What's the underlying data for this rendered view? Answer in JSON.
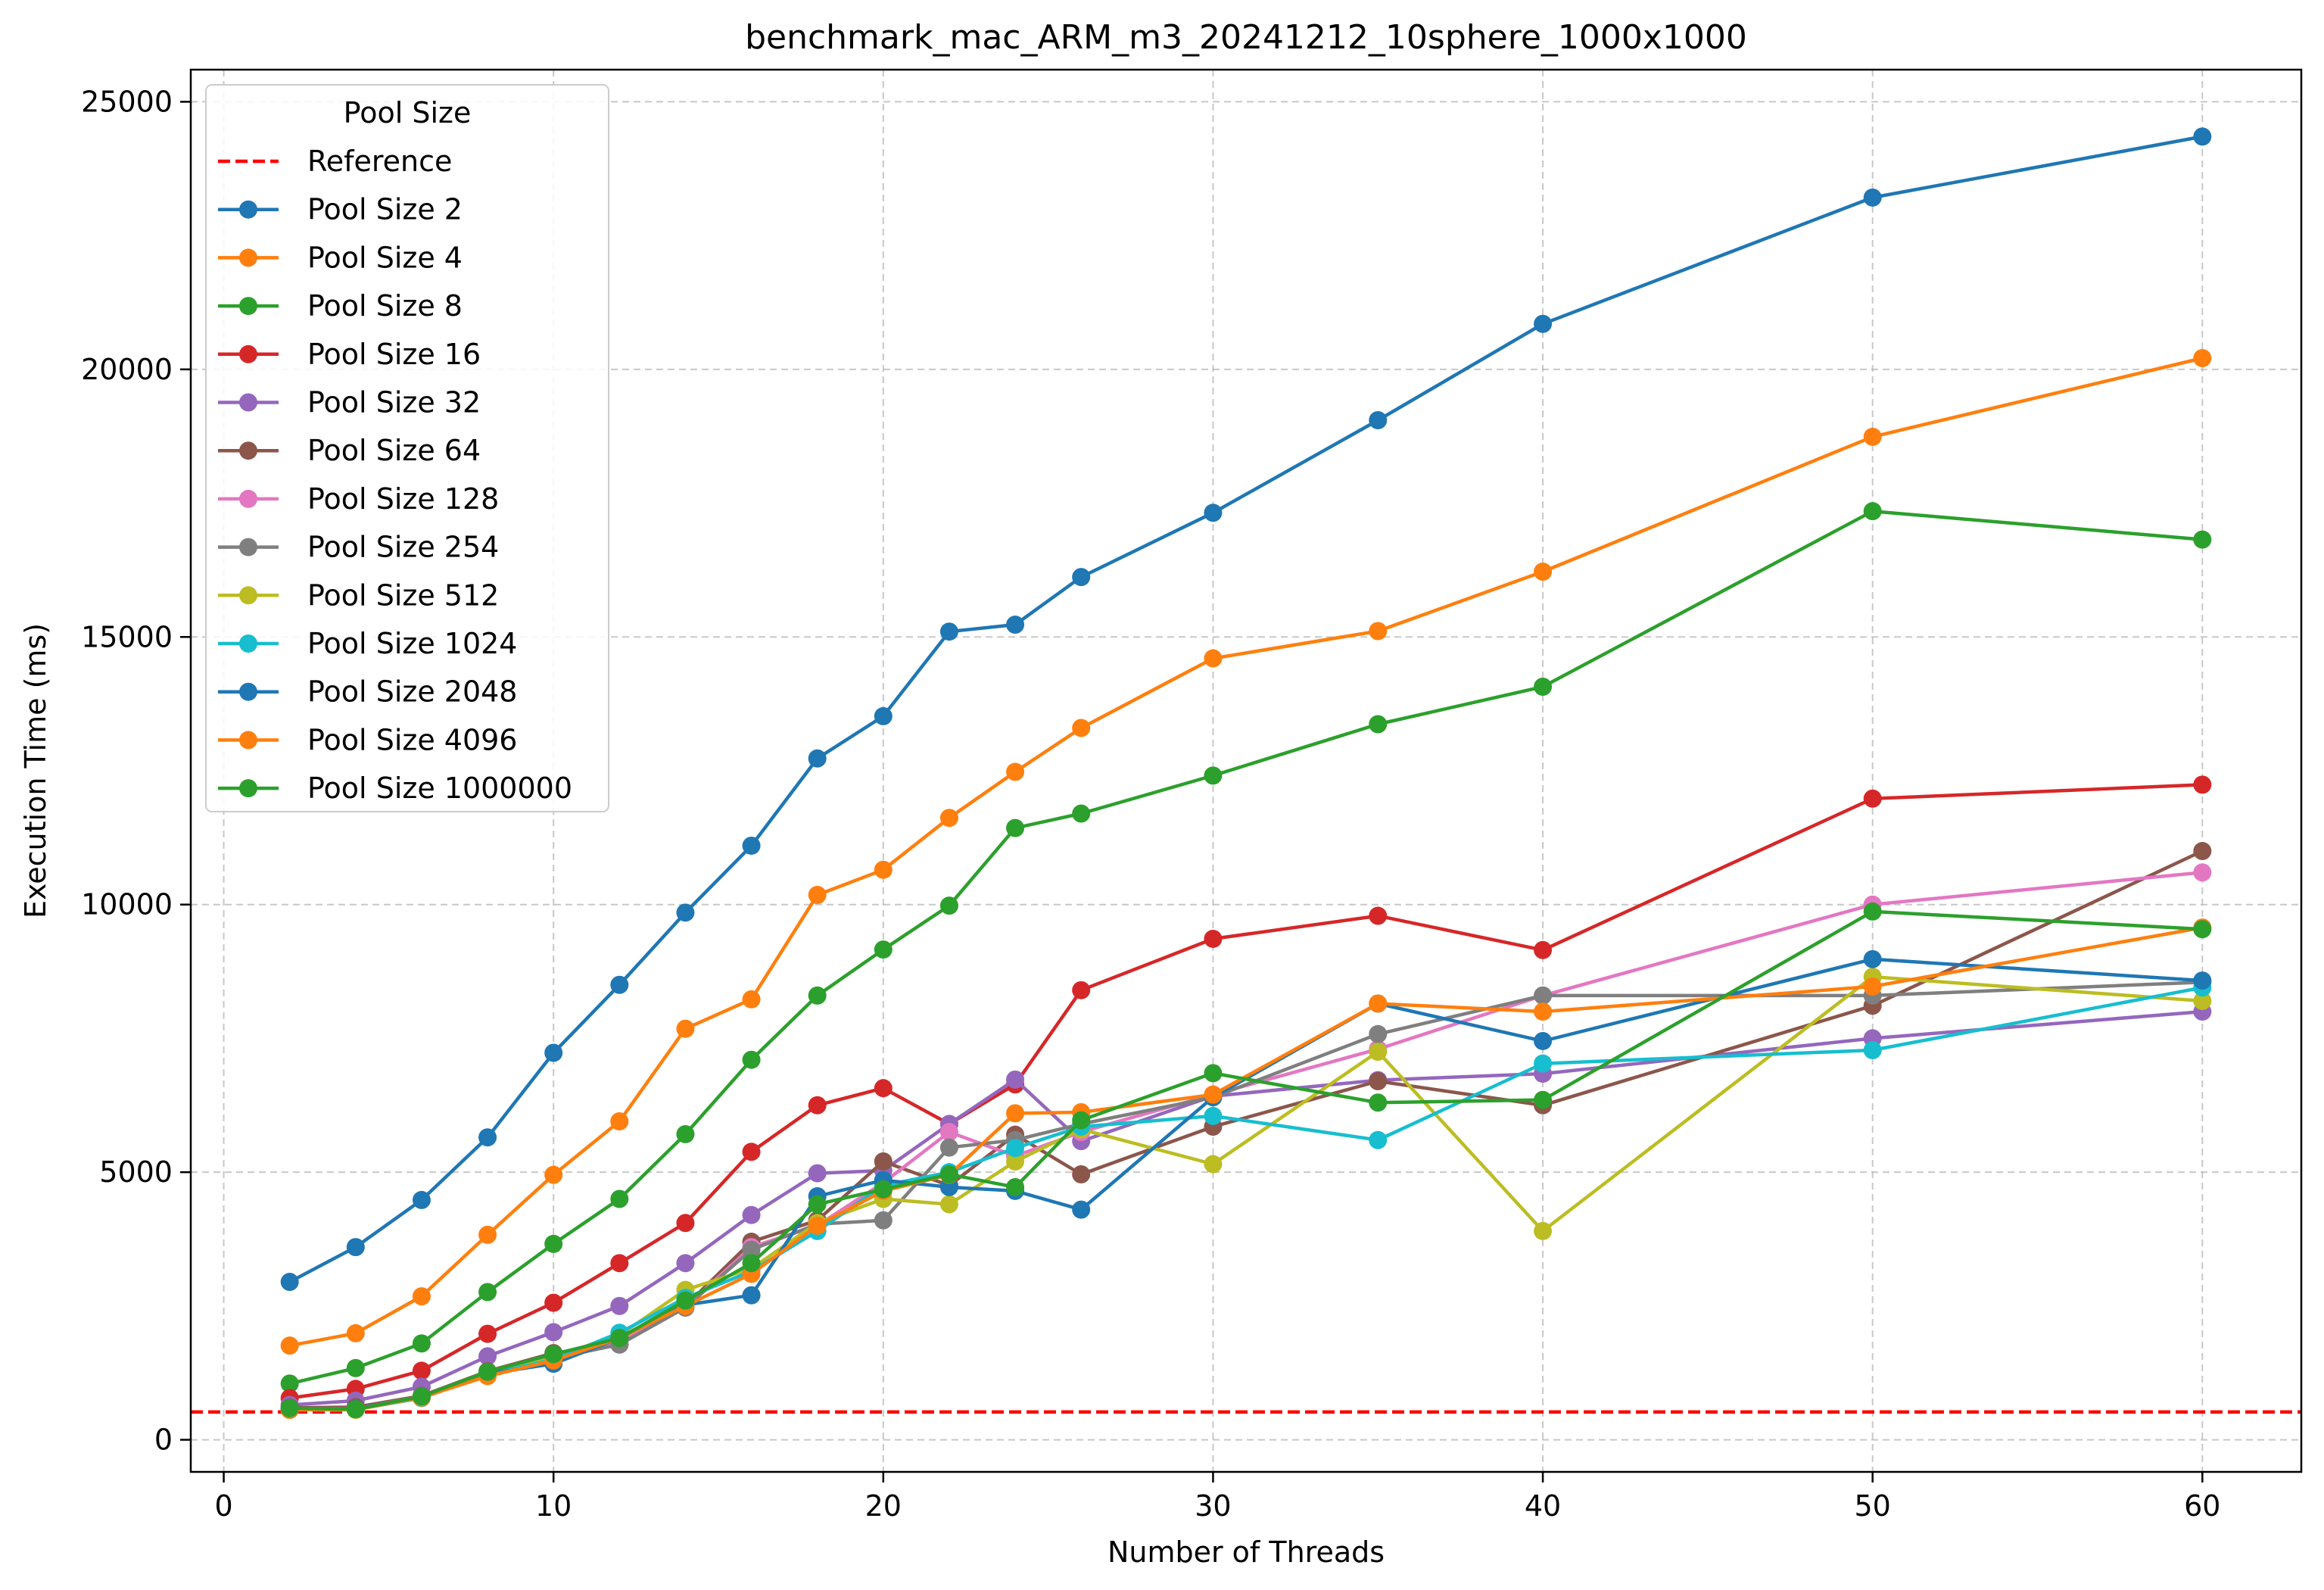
{
  "chart_data": {
    "type": "line",
    "title": "benchmark_mac_ARM_m3_20241212_10sphere_1000x1000",
    "xlabel": "Number of Threads",
    "ylabel": "Execution Time (ms)",
    "xlim": [
      -1,
      63
    ],
    "ylim": [
      -600,
      25600
    ],
    "xticks": [
      0,
      10,
      20,
      30,
      40,
      50,
      60
    ],
    "yticks": [
      0,
      5000,
      10000,
      15000,
      20000,
      25000
    ],
    "grid": true,
    "legend": {
      "title": "Pool Size",
      "placement": "top-left"
    },
    "reference": {
      "name": "Reference",
      "value": 520,
      "color": "#ff0000",
      "style": "dashed"
    },
    "x": [
      2,
      4,
      6,
      8,
      10,
      12,
      14,
      16,
      18,
      20,
      22,
      24,
      26,
      30,
      35,
      40,
      50,
      60
    ],
    "series": [
      {
        "name": "Pool Size 2",
        "color": "#1f77b4",
        "values": [
          2950,
          3600,
          4480,
          5650,
          7230,
          8500,
          9850,
          11100,
          12730,
          13520,
          15100,
          15230,
          16120,
          17320,
          19050,
          20850,
          23210,
          24350
        ]
      },
      {
        "name": "Pool Size 4",
        "color": "#ff7f0e",
        "values": [
          1760,
          1990,
          2680,
          3830,
          4950,
          5950,
          7680,
          8230,
          10180,
          10650,
          11620,
          12480,
          13300,
          14600,
          15110,
          16220,
          18740,
          20210
        ]
      },
      {
        "name": "Pool Size 8",
        "color": "#2ca02c",
        "values": [
          1050,
          1340,
          1800,
          2760,
          3660,
          4500,
          5710,
          7100,
          8300,
          9160,
          9980,
          11430,
          11700,
          12410,
          13370,
          14070,
          17350,
          16820
        ]
      },
      {
        "name": "Pool Size 16",
        "color": "#d62728",
        "values": [
          780,
          950,
          1290,
          1980,
          2560,
          3300,
          4050,
          5380,
          6250,
          6570,
          5900,
          6640,
          8400,
          9360,
          9790,
          9150,
          11980,
          12240
        ]
      },
      {
        "name": "Pool Size 32",
        "color": "#9467bd",
        "values": [
          650,
          730,
          990,
          1560,
          2010,
          2500,
          3300,
          4200,
          4980,
          5030,
          5900,
          6730,
          5580,
          6420,
          6720,
          6840,
          7500,
          8000
        ]
      },
      {
        "name": "Pool Size 64",
        "color": "#8c564b",
        "values": [
          600,
          610,
          820,
          1280,
          1620,
          1780,
          2500,
          3700,
          4100,
          5200,
          4750,
          5700,
          4960,
          5850,
          6700,
          6250,
          8110,
          11000
        ]
      },
      {
        "name": "Pool Size 128",
        "color": "#e377c2",
        "values": [
          580,
          580,
          810,
          1250,
          1550,
          1850,
          2480,
          3600,
          4000,
          4800,
          5750,
          5300,
          5750,
          6450,
          7300,
          8300,
          10000,
          10600
        ]
      },
      {
        "name": "Pool Size 254",
        "color": "#7f7f7f",
        "values": [
          570,
          570,
          800,
          1240,
          1520,
          1780,
          2470,
          3550,
          4030,
          4100,
          5460,
          5600,
          5900,
          6400,
          7580,
          8300,
          8300,
          8550
        ]
      },
      {
        "name": "Pool Size 512",
        "color": "#bcbd22",
        "values": [
          560,
          560,
          790,
          1200,
          1550,
          1950,
          2800,
          3200,
          4050,
          4500,
          4400,
          5200,
          5800,
          5150,
          7250,
          3900,
          8650,
          8200
        ]
      },
      {
        "name": "Pool Size 1024",
        "color": "#17becf",
        "values": [
          570,
          570,
          780,
          1220,
          1500,
          2000,
          2650,
          3150,
          3900,
          4750,
          5000,
          5450,
          5850,
          6050,
          5600,
          7030,
          7280,
          8450
        ]
      },
      {
        "name": "Pool Size 2048",
        "color": "#1f77b4",
        "values": [
          560,
          580,
          800,
          1230,
          1420,
          1900,
          2520,
          2700,
          4550,
          4850,
          4720,
          4650,
          4300,
          6400,
          8150,
          7450,
          8980,
          8580
        ]
      },
      {
        "name": "Pool Size 4096",
        "color": "#ff7f0e",
        "values": [
          560,
          570,
          790,
          1190,
          1480,
          1900,
          2500,
          3100,
          4000,
          4650,
          4950,
          6100,
          6120,
          6450,
          8150,
          8000,
          8470,
          9570
        ]
      },
      {
        "name": "Pool Size 1000000",
        "color": "#2ca02c",
        "values": [
          590,
          570,
          810,
          1270,
          1600,
          1900,
          2600,
          3300,
          4400,
          4680,
          4960,
          4720,
          5970,
          6850,
          6300,
          6350,
          9870,
          9540
        ]
      }
    ]
  }
}
